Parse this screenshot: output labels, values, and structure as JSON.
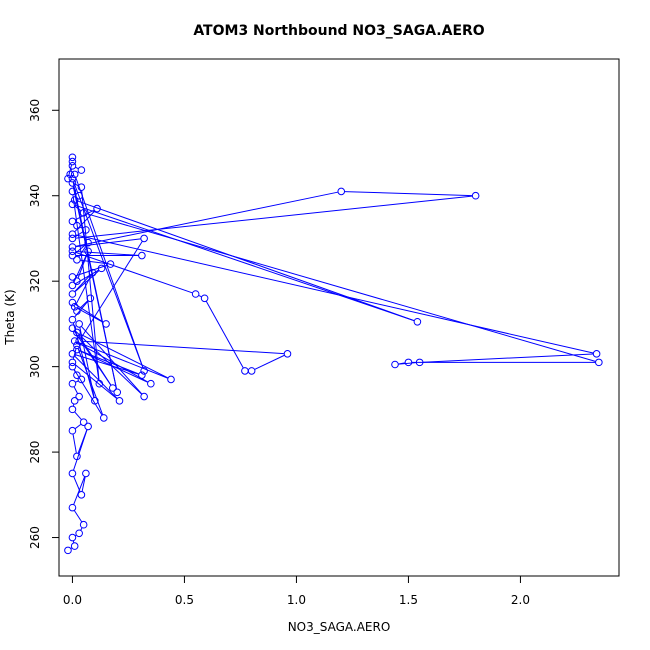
{
  "chart_data": {
    "type": "line",
    "title": "ATOM3 Northbound NO3_SAGA.AERO",
    "xlabel": "NO3_SAGA.AERO",
    "ylabel": "Theta (K)",
    "xlim": [
      -0.06,
      2.44
    ],
    "ylim": [
      251,
      372
    ],
    "xticks": [
      0.0,
      0.5,
      1.0,
      1.5,
      2.0
    ],
    "xtick_labels": [
      "0.0",
      "0.5",
      "1.0",
      "1.5",
      "2.0"
    ],
    "yticks": [
      260,
      280,
      300,
      320,
      340,
      360
    ],
    "ytick_labels": [
      "260",
      "280",
      "300",
      "320",
      "340",
      "360"
    ],
    "grid": false,
    "line_color": "#0000ff",
    "marker": "open-circle",
    "series": [
      {
        "x": [
          -0.02,
          0.01,
          0.0,
          0.03,
          0.05,
          0.0,
          0.06,
          0.04,
          0.0,
          0.07,
          0.02,
          0.0,
          0.05,
          0.0,
          0.01,
          0.03,
          0.0,
          0.04,
          0.02,
          0.0,
          0.14,
          0.02,
          0.0,
          0.21,
          0.0,
          0.31,
          0.02,
          0.35,
          0.01,
          0.44,
          0.02,
          0.18,
          0.0,
          0.32,
          0.03,
          0.1,
          0.0,
          0.08,
          0.02,
          0.0,
          0.15,
          0.01,
          0.09,
          0.0,
          0.13,
          0.0,
          0.07,
          0.02,
          0.0,
          0.17,
          0.02,
          0.07,
          0.0,
          0.31,
          0.0,
          0.55,
          0.59,
          0.77,
          0.8,
          0.96,
          0.03,
          0.32,
          0.0,
          1.2,
          1.8,
          0.0,
          0.06,
          0.02,
          0.0,
          0.11,
          0.0,
          2.34,
          1.55,
          1.44,
          1.5,
          2.35,
          0.05,
          0.0,
          1.54,
          0.01,
          0.03,
          0.0,
          0.12,
          0.04,
          0.0,
          0.2,
          0.0,
          0.32,
          0.01,
          0.04,
          0.0,
          -0.01,
          -0.02,
          0.0,
          0.0
        ],
        "y": [
          257,
          258,
          260,
          261,
          263,
          267,
          275,
          270,
          275,
          286,
          279,
          285,
          287,
          290,
          292,
          293,
          296,
          297,
          298,
          300,
          288,
          305,
          301,
          292,
          303,
          298,
          304,
          296,
          306,
          297,
          308,
          295,
          309,
          293,
          310,
          292,
          311,
          316,
          313,
          315,
          310,
          314,
          322,
          317,
          323,
          319,
          327,
          320,
          321,
          324,
          325,
          329,
          326,
          326,
          327,
          317,
          316,
          299,
          299,
          303,
          306,
          330,
          328,
          341,
          340,
          330,
          332,
          333,
          334,
          337,
          331,
          303,
          301,
          300.5,
          301,
          301,
          336,
          338,
          310.5,
          339,
          340,
          341,
          296,
          342,
          343,
          294,
          344,
          299,
          345,
          346,
          347,
          345,
          344,
          348,
          349
        ]
      }
    ]
  }
}
